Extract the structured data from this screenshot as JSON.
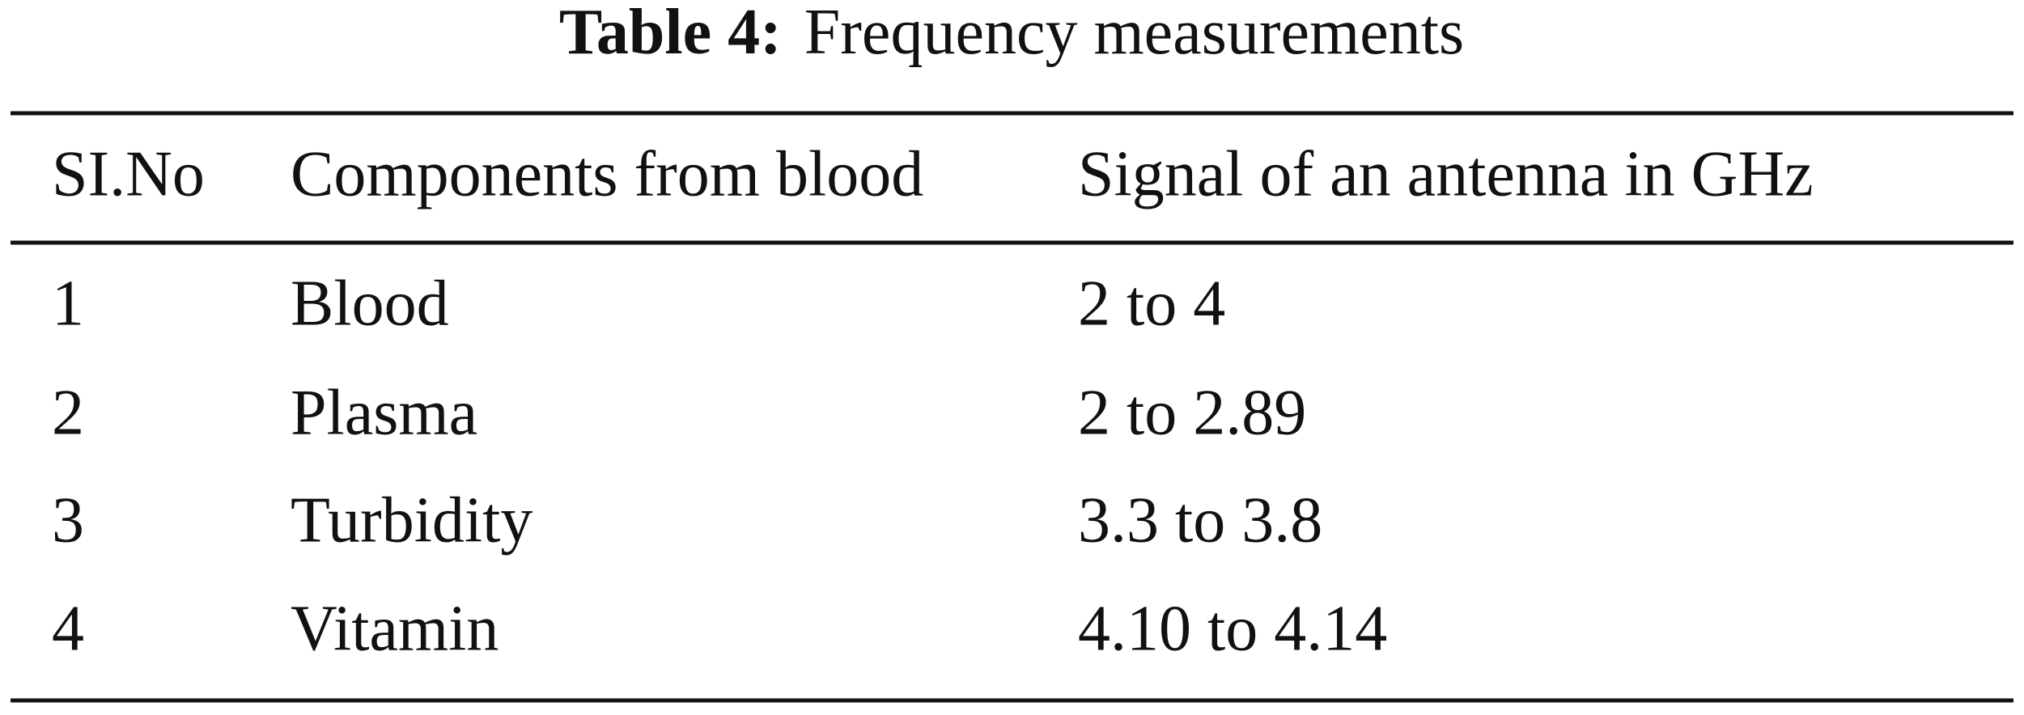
{
  "caption": {
    "label": "Table 4:",
    "text": "Frequency measurements"
  },
  "table": {
    "header": [
      "SI.No",
      "Components from blood",
      "Signal of an antenna in GHz"
    ],
    "rows": [
      [
        "1",
        "Blood",
        "2 to 4"
      ],
      [
        "2",
        "Plasma",
        "2 to 2.89"
      ],
      [
        "3",
        "Turbidity",
        "3.3 to 3.8"
      ],
      [
        "4",
        "Vitamin",
        "4.10 to 4.14"
      ]
    ]
  }
}
